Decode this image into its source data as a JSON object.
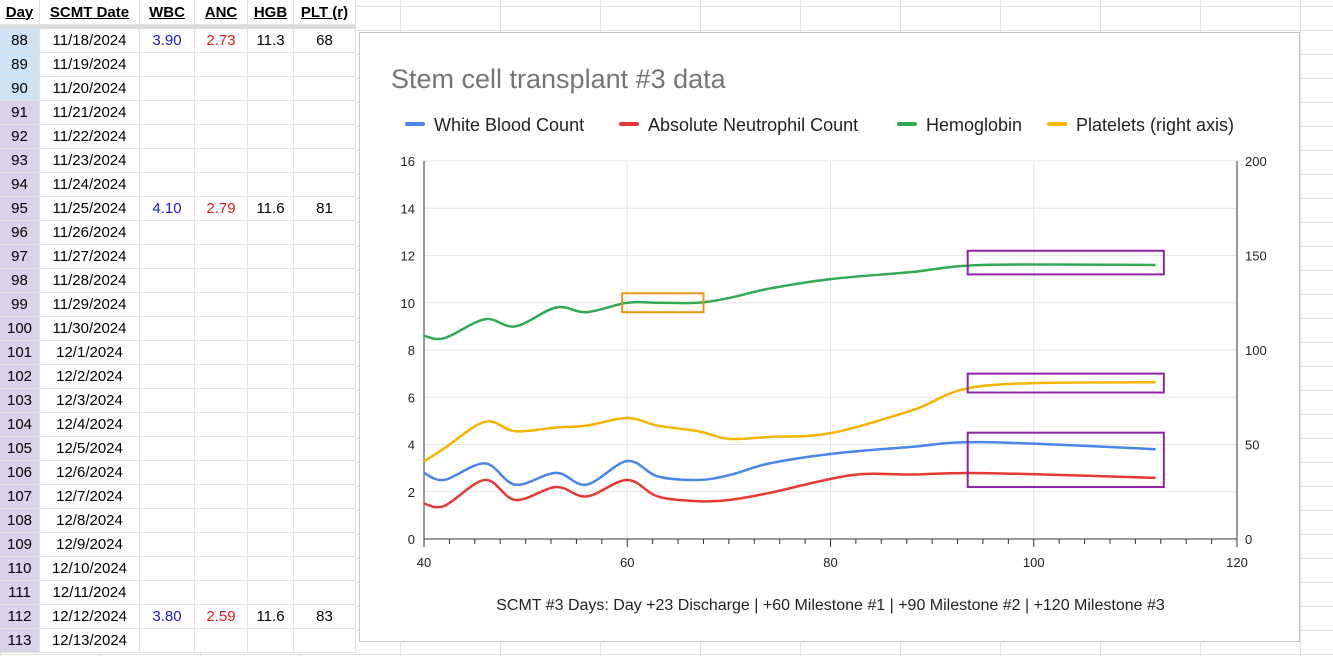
{
  "sheet": {
    "columns": [
      "Day",
      "SCMT Date",
      "WBC",
      "ANC",
      "HGB",
      "PLT (r)"
    ],
    "rows": [
      {
        "day": "88",
        "date": "11/18/2024",
        "wbc": "3.90",
        "anc": "2.73",
        "hgb": "11.3",
        "plt": "68"
      },
      {
        "day": "89",
        "date": "11/19/2024",
        "wbc": "",
        "anc": "",
        "hgb": "",
        "plt": ""
      },
      {
        "day": "90",
        "date": "11/20/2024",
        "wbc": "",
        "anc": "",
        "hgb": "",
        "plt": ""
      },
      {
        "day": "91",
        "date": "11/21/2024",
        "wbc": "",
        "anc": "",
        "hgb": "",
        "plt": ""
      },
      {
        "day": "92",
        "date": "11/22/2024",
        "wbc": "",
        "anc": "",
        "hgb": "",
        "plt": ""
      },
      {
        "day": "93",
        "date": "11/23/2024",
        "wbc": "",
        "anc": "",
        "hgb": "",
        "plt": ""
      },
      {
        "day": "94",
        "date": "11/24/2024",
        "wbc": "",
        "anc": "",
        "hgb": "",
        "plt": ""
      },
      {
        "day": "95",
        "date": "11/25/2024",
        "wbc": "4.10",
        "anc": "2.79",
        "hgb": "11.6",
        "plt": "81"
      },
      {
        "day": "96",
        "date": "11/26/2024",
        "wbc": "",
        "anc": "",
        "hgb": "",
        "plt": ""
      },
      {
        "day": "97",
        "date": "11/27/2024",
        "wbc": "",
        "anc": "",
        "hgb": "",
        "plt": ""
      },
      {
        "day": "98",
        "date": "11/28/2024",
        "wbc": "",
        "anc": "",
        "hgb": "",
        "plt": ""
      },
      {
        "day": "99",
        "date": "11/29/2024",
        "wbc": "",
        "anc": "",
        "hgb": "",
        "plt": ""
      },
      {
        "day": "100",
        "date": "11/30/2024",
        "wbc": "",
        "anc": "",
        "hgb": "",
        "plt": ""
      },
      {
        "day": "101",
        "date": "12/1/2024",
        "wbc": "",
        "anc": "",
        "hgb": "",
        "plt": ""
      },
      {
        "day": "102",
        "date": "12/2/2024",
        "wbc": "",
        "anc": "",
        "hgb": "",
        "plt": ""
      },
      {
        "day": "103",
        "date": "12/3/2024",
        "wbc": "",
        "anc": "",
        "hgb": "",
        "plt": ""
      },
      {
        "day": "104",
        "date": "12/4/2024",
        "wbc": "",
        "anc": "",
        "hgb": "",
        "plt": ""
      },
      {
        "day": "105",
        "date": "12/5/2024",
        "wbc": "",
        "anc": "",
        "hgb": "",
        "plt": ""
      },
      {
        "day": "106",
        "date": "12/6/2024",
        "wbc": "",
        "anc": "",
        "hgb": "",
        "plt": ""
      },
      {
        "day": "107",
        "date": "12/7/2024",
        "wbc": "",
        "anc": "",
        "hgb": "",
        "plt": ""
      },
      {
        "day": "108",
        "date": "12/8/2024",
        "wbc": "",
        "anc": "",
        "hgb": "",
        "plt": ""
      },
      {
        "day": "109",
        "date": "12/9/2024",
        "wbc": "",
        "anc": "",
        "hgb": "",
        "plt": ""
      },
      {
        "day": "110",
        "date": "12/10/2024",
        "wbc": "",
        "anc": "",
        "hgb": "",
        "plt": ""
      },
      {
        "day": "111",
        "date": "12/11/2024",
        "wbc": "",
        "anc": "",
        "hgb": "",
        "plt": ""
      },
      {
        "day": "112",
        "date": "12/12/2024",
        "wbc": "3.80",
        "anc": "2.59",
        "hgb": "11.6",
        "plt": "83"
      },
      {
        "day": "113",
        "date": "12/13/2024",
        "wbc": "",
        "anc": "",
        "hgb": "",
        "plt": ""
      }
    ],
    "highlighted_day_rows": [
      0,
      1,
      2
    ],
    "colors": {
      "wbc_text": "#1a1acc",
      "anc_text": "#e31a1a",
      "day_column": "#d9d2e9",
      "day_column_selected": "#cfe2f3"
    }
  },
  "chart_data": {
    "type": "line",
    "title": "Stem cell transplant #3 data",
    "xlabel": "SCMT #3 Days: Day +23 Discharge | +60 Milestone #1 | +90 Milestone #2 | +120 Milestone #3",
    "xlim": [
      40,
      120
    ],
    "xticks": [
      40,
      60,
      80,
      100,
      120
    ],
    "ylim": [
      0,
      16
    ],
    "yticks": [
      0,
      2,
      4,
      6,
      8,
      10,
      12,
      14,
      16
    ],
    "y2lim": [
      0,
      200
    ],
    "y2ticks": [
      0,
      50,
      100,
      150,
      200
    ],
    "legend_position": "top",
    "grid": true,
    "series": [
      {
        "name": "White Blood Count",
        "color": "#4a86e8",
        "axis": "left",
        "x": [
          40,
          42,
          46,
          49,
          53,
          56,
          60,
          63,
          67,
          70,
          74,
          80,
          88,
          95,
          112
        ],
        "y": [
          2.8,
          2.5,
          3.2,
          2.3,
          2.8,
          2.3,
          3.3,
          2.65,
          2.5,
          2.7,
          3.2,
          3.6,
          3.9,
          4.1,
          3.8
        ]
      },
      {
        "name": "Absolute Neutrophil Count",
        "color": "#e53935",
        "axis": "left",
        "x": [
          40,
          42,
          46,
          49,
          53,
          56,
          60,
          63,
          67,
          70,
          74,
          82,
          88,
          95,
          112
        ],
        "y": [
          1.5,
          1.4,
          2.5,
          1.65,
          2.2,
          1.8,
          2.5,
          1.8,
          1.6,
          1.65,
          1.95,
          2.7,
          2.73,
          2.79,
          2.59
        ]
      },
      {
        "name": "Hemoglobin",
        "color": "#34a853",
        "axis": "left",
        "x": [
          40,
          42,
          46,
          49,
          53,
          56,
          60,
          63,
          67,
          70,
          74,
          80,
          88,
          95,
          112
        ],
        "y": [
          8.6,
          8.5,
          9.3,
          9.0,
          9.8,
          9.6,
          10.0,
          10.0,
          10.0,
          10.2,
          10.6,
          11.0,
          11.3,
          11.6,
          11.6
        ]
      },
      {
        "name": "Platelets (right axis)",
        "color": "#f4b400",
        "axis": "right",
        "x": [
          40,
          42,
          46,
          49,
          53,
          56,
          60,
          63,
          67,
          70,
          74,
          80,
          88,
          95,
          112
        ],
        "y": [
          41,
          48,
          62,
          57,
          59,
          60,
          64,
          60,
          57,
          53,
          54,
          56,
          68,
          81,
          83
        ]
      }
    ],
    "annotations": [
      {
        "kind": "box",
        "color": "#f29411",
        "x": [
          59.5,
          67.5
        ],
        "y": [
          9.6,
          10.4
        ]
      },
      {
        "kind": "box",
        "color": "#8e24aa",
        "x": [
          93.5,
          112.8
        ],
        "y": [
          11.2,
          12.2
        ]
      },
      {
        "kind": "box",
        "color": "#8e24aa",
        "x": [
          93.5,
          112.8
        ],
        "y": [
          6.2,
          7.0
        ]
      },
      {
        "kind": "box",
        "color": "#8e24aa",
        "x": [
          93.5,
          112.8
        ],
        "y": [
          2.2,
          4.5
        ]
      }
    ]
  }
}
